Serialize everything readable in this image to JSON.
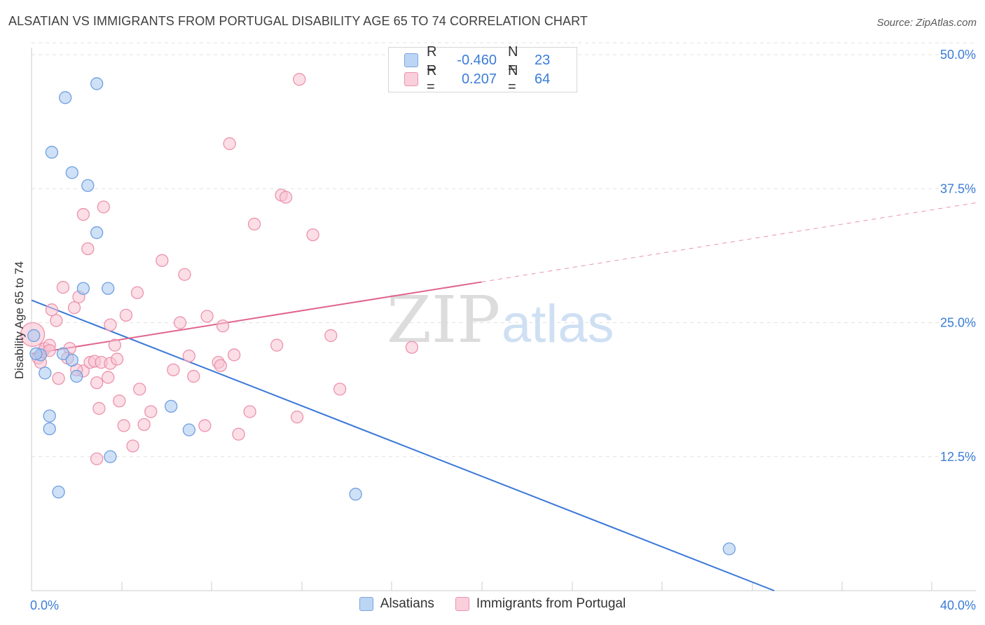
{
  "title": "ALSATIAN VS IMMIGRANTS FROM PORTUGAL DISABILITY AGE 65 TO 74 CORRELATION CHART",
  "source": "Source: ZipAtlas.com",
  "watermark": {
    "part1": "ZIP",
    "part2": "atlas"
  },
  "legend": {
    "rows": [
      {
        "r_label": "R =",
        "r_value": "-0.460",
        "n_label": "N =",
        "n_value": "23"
      },
      {
        "r_label": "R =",
        "r_value": "0.207",
        "n_label": "N =",
        "n_value": "64"
      }
    ]
  },
  "colors": {
    "blue_fill": "#a8c8f0",
    "blue_stroke": "#6f9fe0",
    "blue_line": "#3a78d8",
    "pink_fill": "#f7c3d2",
    "pink_stroke": "#ec93ad",
    "pink_line": "#e0648e",
    "tick_label": "#3b7dd8",
    "grid": "#e2e2e2"
  },
  "chart_data": {
    "type": "scatter",
    "title": "ALSATIAN VS IMMIGRANTS FROM PORTUGAL DISABILITY AGE 65 TO 74 CORRELATION CHART",
    "xlabel": "",
    "ylabel": "Disability Age 65 to 74",
    "xlim": [
      0,
      42
    ],
    "ylim": [
      0,
      50
    ],
    "x_tick_labels": [
      "0.0%",
      "40.0%"
    ],
    "y_ticks": [
      12.5,
      25.0,
      37.5,
      50.0
    ],
    "y_tick_labels": [
      "12.5%",
      "25.0%",
      "37.5%",
      "50.0%"
    ],
    "series": [
      {
        "name": "Alsatians",
        "r": -0.46,
        "n": 23,
        "points": [
          [
            0.1,
            23.8
          ],
          [
            0.4,
            22.0
          ],
          [
            0.6,
            20.3
          ],
          [
            0.8,
            16.3
          ],
          [
            0.8,
            15.1
          ],
          [
            0.9,
            40.9
          ],
          [
            1.2,
            9.2
          ],
          [
            1.4,
            22.1
          ],
          [
            1.5,
            46.0
          ],
          [
            1.8,
            21.5
          ],
          [
            1.8,
            39.0
          ],
          [
            2.0,
            20.0
          ],
          [
            2.3,
            28.2
          ],
          [
            2.5,
            37.8
          ],
          [
            2.9,
            47.3
          ],
          [
            2.9,
            33.4
          ],
          [
            3.4,
            28.2
          ],
          [
            3.5,
            12.5
          ],
          [
            6.2,
            17.2
          ],
          [
            7.0,
            15.0
          ],
          [
            14.4,
            9.0
          ],
          [
            31.0,
            3.9
          ],
          [
            0.2,
            22.1
          ]
        ],
        "trend": {
          "x0": 0,
          "y0": 27.1,
          "x1": 33.0,
          "y1": 0,
          "dash_from": null
        }
      },
      {
        "name": "Immigrants from Portugal",
        "r": 0.207,
        "n": 64,
        "points": [
          [
            0.05,
            23.9
          ],
          [
            0.3,
            21.7
          ],
          [
            0.4,
            21.3
          ],
          [
            0.5,
            22.3
          ],
          [
            0.6,
            22.6
          ],
          [
            0.8,
            22.9
          ],
          [
            0.9,
            26.2
          ],
          [
            1.1,
            25.2
          ],
          [
            1.2,
            19.8
          ],
          [
            1.4,
            28.3
          ],
          [
            1.7,
            22.6
          ],
          [
            1.9,
            26.4
          ],
          [
            2.1,
            27.4
          ],
          [
            2.3,
            35.1
          ],
          [
            2.3,
            20.5
          ],
          [
            2.5,
            31.9
          ],
          [
            2.6,
            21.3
          ],
          [
            2.8,
            21.4
          ],
          [
            2.9,
            12.3
          ],
          [
            2.9,
            19.4
          ],
          [
            3.0,
            17.0
          ],
          [
            3.1,
            21.3
          ],
          [
            3.2,
            35.8
          ],
          [
            3.4,
            19.9
          ],
          [
            3.5,
            24.8
          ],
          [
            3.5,
            21.2
          ],
          [
            3.7,
            22.9
          ],
          [
            3.8,
            21.6
          ],
          [
            3.9,
            17.7
          ],
          [
            4.1,
            15.4
          ],
          [
            4.2,
            25.7
          ],
          [
            4.5,
            13.5
          ],
          [
            4.7,
            27.8
          ],
          [
            4.8,
            18.8
          ],
          [
            5.0,
            15.5
          ],
          [
            5.3,
            16.7
          ],
          [
            5.8,
            30.8
          ],
          [
            6.3,
            20.6
          ],
          [
            6.6,
            25.0
          ],
          [
            6.8,
            29.5
          ],
          [
            7.0,
            21.9
          ],
          [
            7.2,
            20.0
          ],
          [
            7.7,
            15.4
          ],
          [
            7.8,
            25.6
          ],
          [
            8.3,
            21.3
          ],
          [
            8.4,
            21.0
          ],
          [
            8.5,
            24.7
          ],
          [
            8.8,
            41.7
          ],
          [
            9.0,
            22.0
          ],
          [
            9.2,
            14.6
          ],
          [
            9.7,
            16.7
          ],
          [
            9.9,
            34.2
          ],
          [
            10.9,
            22.9
          ],
          [
            11.1,
            36.9
          ],
          [
            11.3,
            36.7
          ],
          [
            11.8,
            16.2
          ],
          [
            11.9,
            47.7
          ],
          [
            12.5,
            33.2
          ],
          [
            13.3,
            23.8
          ],
          [
            13.7,
            18.8
          ],
          [
            16.9,
            22.7
          ],
          [
            0.8,
            22.4
          ],
          [
            1.6,
            21.7
          ],
          [
            2.0,
            20.6
          ]
        ],
        "trend": {
          "x0": 0,
          "y0": 22.1,
          "x1": 20.0,
          "y1": 28.8,
          "x2": 42.0,
          "y2": 36.2
        }
      }
    ]
  },
  "bottom_legend": [
    "Alsatians",
    "Immigrants from Portugal"
  ]
}
